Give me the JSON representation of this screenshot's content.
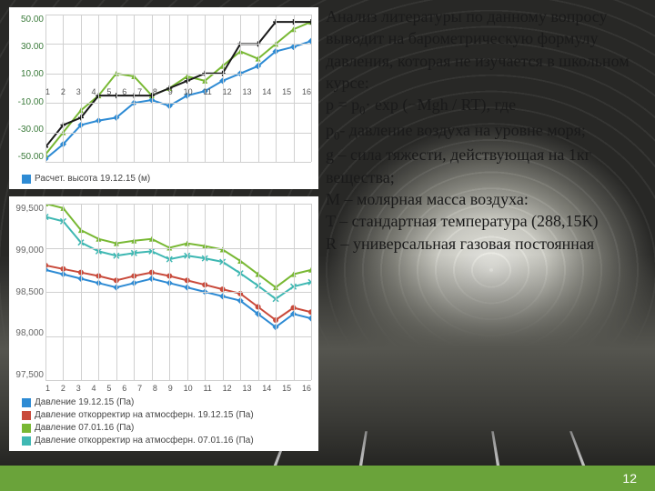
{
  "page_number": "12",
  "accent_color": "#6aa33a",
  "text": {
    "p1": "Анализ литературы по данному вопросу выводит на барометрическую формулу давления, которая не изучается в школьном курсе:",
    "formula_prefix": "p = p",
    "formula_sub1": "0",
    "formula_mid": "· exp (−Mgh / RT), где",
    "p0_prefix": "p",
    "p0_sub": "0",
    "p0_rest": "- давление воздуха на уровне моря;",
    "g_line": "g – сила тяжести, действующая на 1кг вещества;",
    "m_line": "M – молярная масса воздуха:",
    "t_line": "T – стандартная температура (288,15К)",
    "r_line": "R – универсальная газовая постоянная"
  },
  "chart1": {
    "type": "line",
    "grid_color": "#d0d0d0",
    "background_color": "#ffffff",
    "axis_fontsize": 10,
    "x_categories": [
      "1",
      "2",
      "3",
      "4",
      "5",
      "6",
      "7",
      "8",
      "9",
      "10",
      "11",
      "12",
      "13",
      "14",
      "15",
      "16"
    ],
    "y_ticks": [
      "50.00",
      "30.00",
      "10.00",
      "-10.00",
      "-30.00",
      "-50.00"
    ],
    "ylim": [
      -50,
      50
    ],
    "series": [
      {
        "name": "Расчет. высота 19.12.15 (м)",
        "color": "#2e8bd4",
        "marker": "diamond",
        "values": [
          -48,
          -38,
          -25,
          -22,
          -20,
          -10,
          -8,
          -12,
          -5,
          -2,
          5,
          10,
          15,
          25,
          28,
          32
        ]
      },
      {
        "name": "series-green",
        "color": "#78b833",
        "marker": "triangle",
        "values": [
          -45,
          -30,
          -15,
          -5,
          10,
          8,
          -5,
          0,
          8,
          5,
          15,
          25,
          20,
          30,
          40,
          45
        ]
      },
      {
        "name": "series-black",
        "color": "#1a1a1a",
        "marker": "plus",
        "values": [
          -40,
          -25,
          -20,
          -5,
          -5,
          -5,
          -5,
          0,
          5,
          10,
          10,
          30,
          30,
          45,
          45,
          45
        ]
      }
    ],
    "legend_items": [
      {
        "color": "#2e8bd4",
        "label": "Расчет. высота 19.12.15 (м)"
      }
    ]
  },
  "chart2": {
    "type": "line",
    "grid_color": "#d0d0d0",
    "background_color": "#ffffff",
    "axis_fontsize": 10,
    "x_categories": [
      "1",
      "2",
      "3",
      "4",
      "5",
      "6",
      "7",
      "8",
      "9",
      "10",
      "11",
      "12",
      "13",
      "14",
      "15",
      "16"
    ],
    "y_ticks": [
      "99,500",
      "99,000",
      "98,500",
      "98,000",
      "97,500"
    ],
    "ylim": [
      97500,
      99500
    ],
    "series": [
      {
        "name": "Давление 19.12.15 (Па)",
        "color": "#2e8bd4",
        "marker": "diamond",
        "values": [
          98750,
          98700,
          98650,
          98600,
          98550,
          98600,
          98650,
          98600,
          98550,
          98500,
          98450,
          98400,
          98250,
          98100,
          98250,
          98200
        ]
      },
      {
        "name": "Давление откорректир на атмосферн. 19.12.15 (Па)",
        "color": "#c94a3b",
        "marker": "circle",
        "values": [
          98800,
          98760,
          98720,
          98680,
          98630,
          98680,
          98720,
          98680,
          98630,
          98580,
          98530,
          98480,
          98330,
          98180,
          98320,
          98270
        ]
      },
      {
        "name": "Давление 07.01.16 (Па)",
        "color": "#78b833",
        "marker": "triangle",
        "values": [
          99500,
          99450,
          99200,
          99100,
          99050,
          99080,
          99100,
          99000,
          99050,
          99020,
          98980,
          98850,
          98700,
          98550,
          98700,
          98750
        ]
      },
      {
        "name": "Давление откорректир на атмосферн. 07.01.16 (Па)",
        "color": "#3fb8b3",
        "marker": "x",
        "values": [
          99350,
          99300,
          99060,
          98960,
          98910,
          98940,
          98960,
          98870,
          98910,
          98880,
          98840,
          98710,
          98570,
          98420,
          98560,
          98610
        ]
      }
    ],
    "legend_items": [
      {
        "color": "#2e8bd4",
        "label": "Давление 19.12.15 (Па)"
      },
      {
        "color": "#c94a3b",
        "label": "Давление откорректир на атмосферн. 19.12.15 (Па)"
      },
      {
        "color": "#78b833",
        "label": "Давление 07.01.16 (Па)"
      },
      {
        "color": "#3fb8b3",
        "label": "Давление откорректир на атмосферн. 07.01.16 (Па)"
      }
    ]
  }
}
